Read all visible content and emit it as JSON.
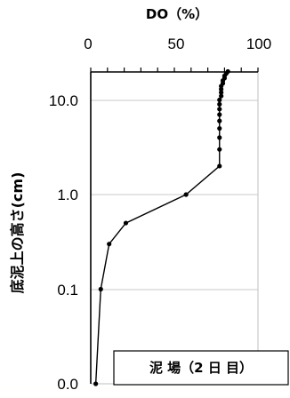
{
  "chart_data": {
    "type": "scatter",
    "title": "DO（%）",
    "ylabel": "底泥上の高さ(cm)",
    "xlabel": "",
    "x_axis_position": "top",
    "y_scale": "log",
    "xlim": [
      0,
      100
    ],
    "x_ticks": [
      "0",
      "50",
      "100"
    ],
    "y_tick_labels": [
      "10.0",
      "1.0",
      "0.1",
      "0.0"
    ],
    "grid": "horizontal",
    "annotation": "泥 場（2 日 目）",
    "series": [
      {
        "marker": "circle",
        "line": true,
        "color": "#000000",
        "points": [
          {
            "x": 3,
            "y": 0.01
          },
          {
            "x": 6,
            "y": 0.1
          },
          {
            "x": 11,
            "y": 0.3
          },
          {
            "x": 21,
            "y": 0.5
          },
          {
            "x": 57,
            "y": 1.0
          },
          {
            "x": 77,
            "y": 2.0
          },
          {
            "x": 77,
            "y": 3.0
          },
          {
            "x": 77,
            "y": 4.0
          },
          {
            "x": 77,
            "y": 5.0
          },
          {
            "x": 77,
            "y": 6.0
          },
          {
            "x": 77,
            "y": 7.0
          },
          {
            "x": 77,
            "y": 8.0
          },
          {
            "x": 77,
            "y": 9.0
          },
          {
            "x": 77,
            "y": 10.0
          },
          {
            "x": 78,
            "y": 11.0
          },
          {
            "x": 78,
            "y": 12.0
          },
          {
            "x": 78,
            "y": 13.0
          },
          {
            "x": 78,
            "y": 14.0
          },
          {
            "x": 79,
            "y": 15.0
          },
          {
            "x": 79,
            "y": 16.0
          },
          {
            "x": 80,
            "y": 17.0
          },
          {
            "x": 80,
            "y": 18.0
          },
          {
            "x": 81,
            "y": 19.0
          },
          {
            "x": 82,
            "y": 20.0
          }
        ]
      }
    ]
  }
}
